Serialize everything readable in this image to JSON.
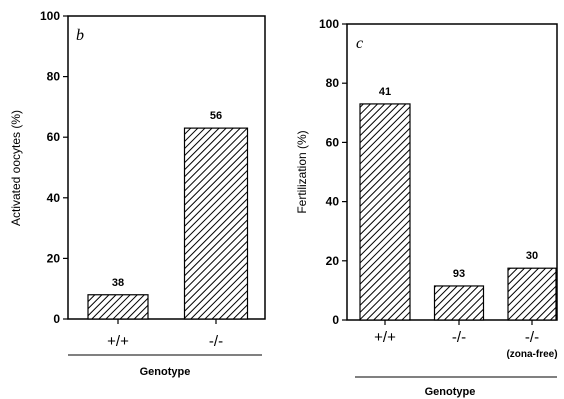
{
  "chart_data": [
    {
      "type": "bar",
      "panel_label": "b",
      "categories": [
        "+/+",
        "-/-"
      ],
      "category_sublabels": [
        "",
        ""
      ],
      "values": [
        8,
        63
      ],
      "data_labels": [
        "38",
        "56"
      ],
      "ylabel": "Activated oocytes (%)",
      "xlabel": "Genotype",
      "ylim": [
        0,
        100
      ],
      "yticks": [
        "0",
        "20",
        "40",
        "60",
        "80",
        "100"
      ],
      "bar_fill": "diagonal-hatch",
      "grid": false
    },
    {
      "type": "bar",
      "panel_label": "c",
      "categories": [
        "+/+",
        "-/-",
        "-/-"
      ],
      "category_sublabels": [
        "",
        "",
        "(zona-free)"
      ],
      "values": [
        73,
        11.5,
        17.5
      ],
      "data_labels": [
        "41",
        "93",
        "30"
      ],
      "ylabel": "Fertilization (%)",
      "xlabel": "Genotype",
      "ylim": [
        0,
        100
      ],
      "yticks": [
        "0",
        "20",
        "40",
        "60",
        "80",
        "100"
      ],
      "bar_fill": "diagonal-hatch",
      "grid": false
    }
  ]
}
